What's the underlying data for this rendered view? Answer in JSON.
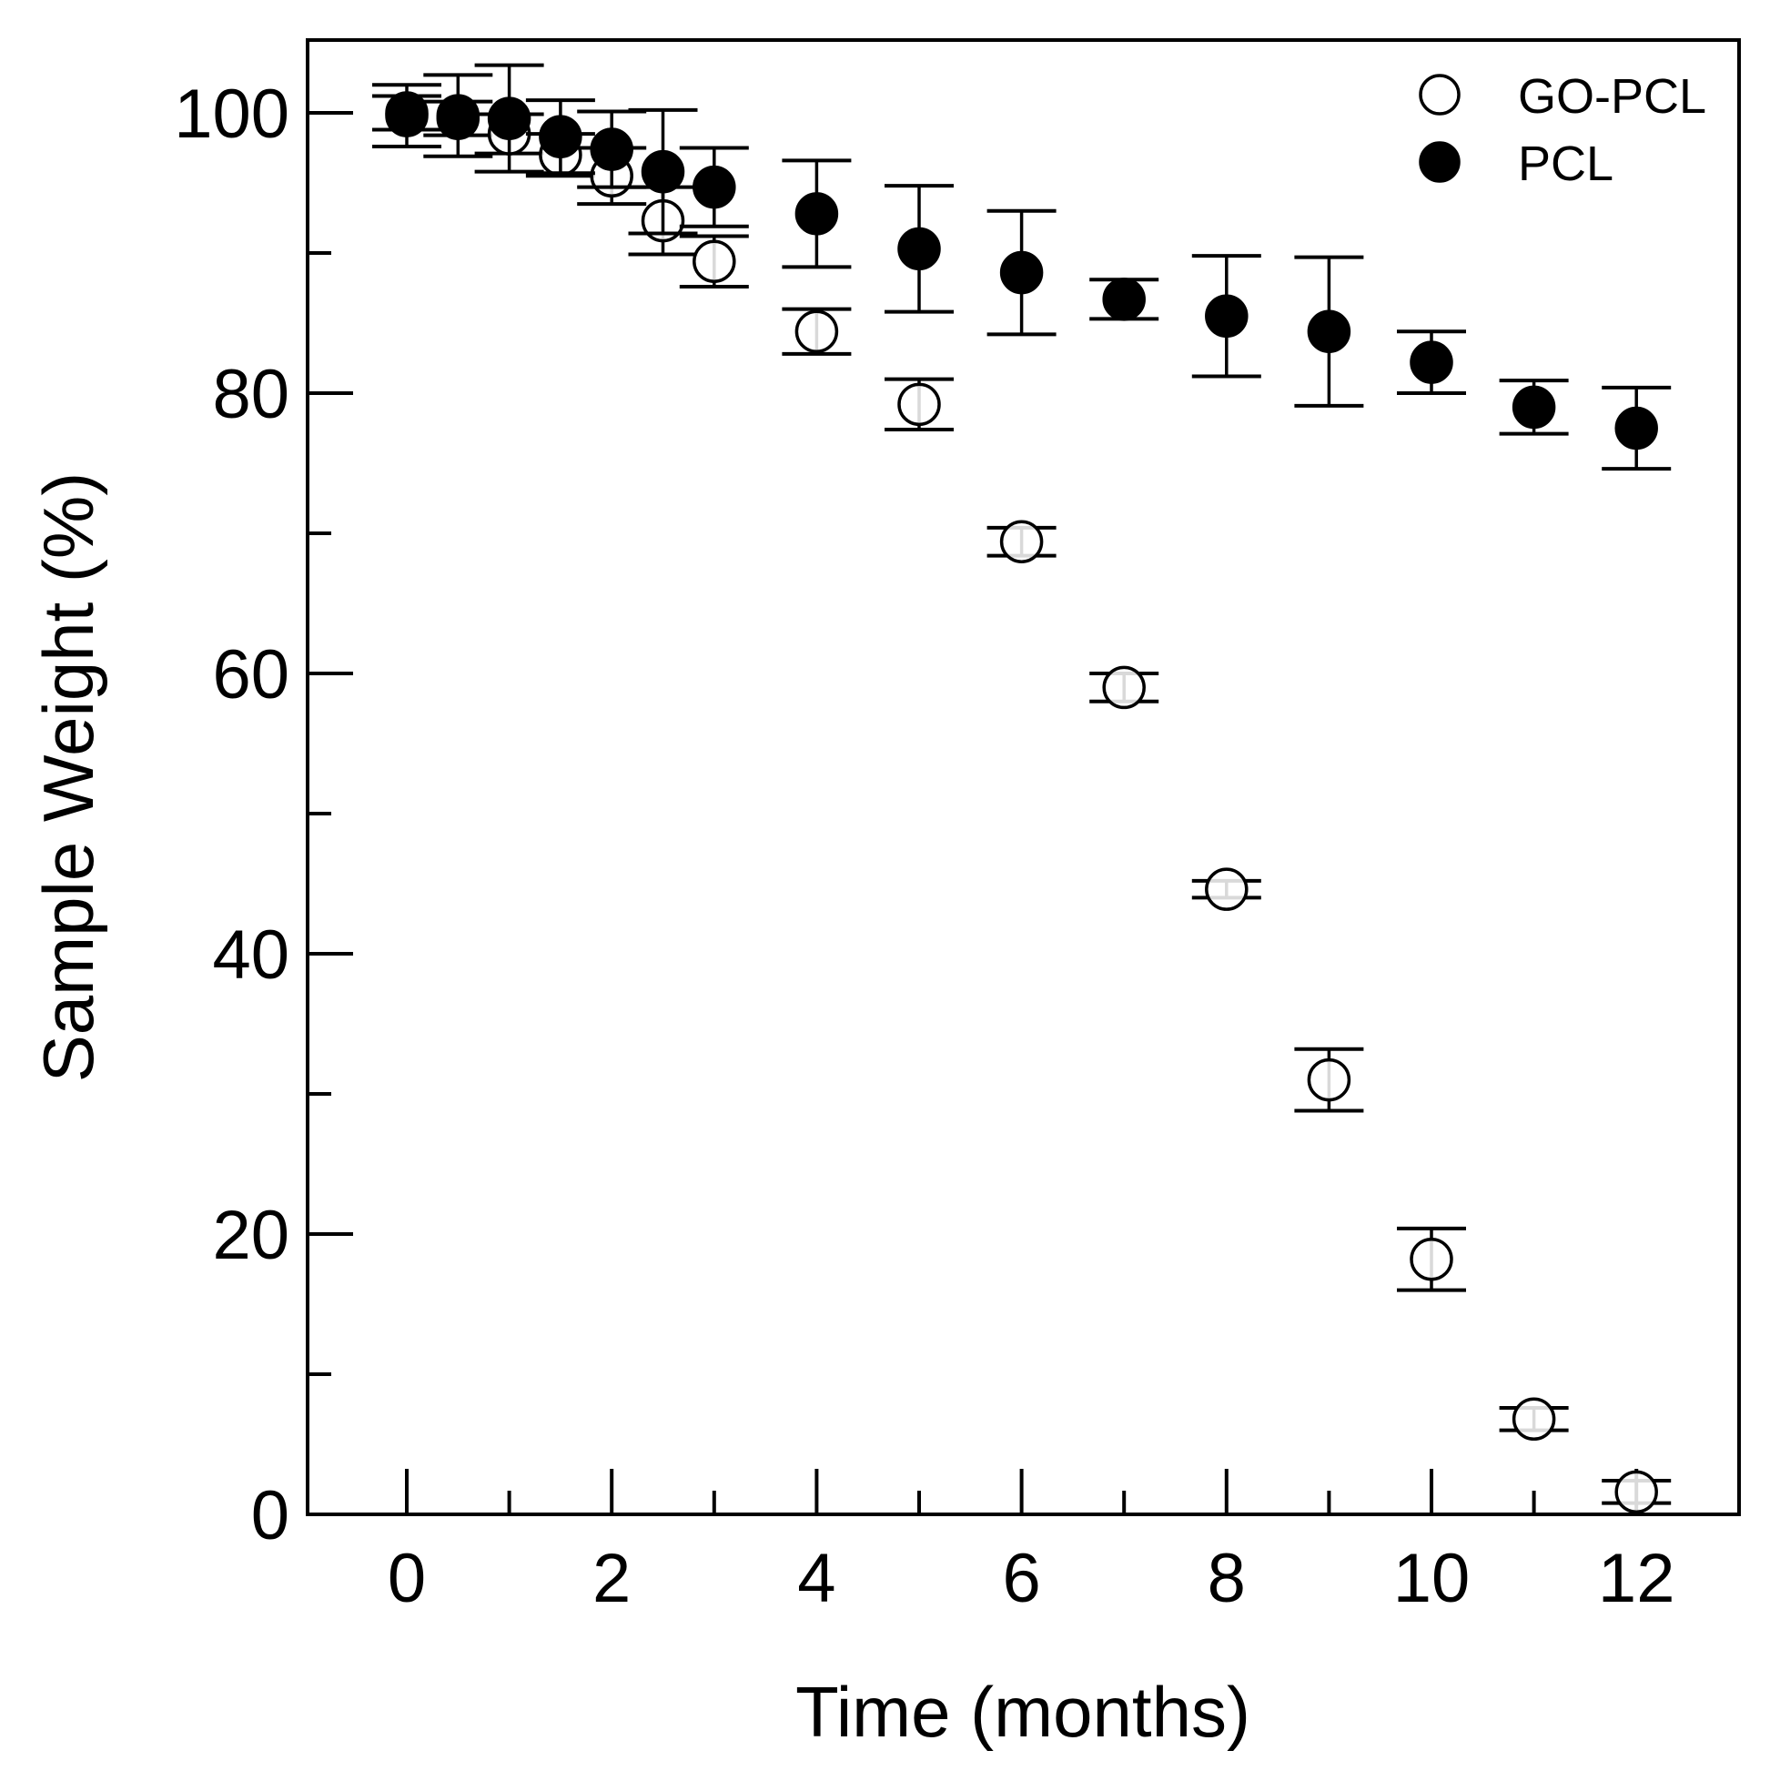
{
  "chart_data": {
    "type": "scatter",
    "title": "",
    "xlabel": "Time (months)",
    "ylabel": "Sample Weight (%)",
    "xlim": [
      -1,
      13
    ],
    "ylim": [
      0,
      105
    ],
    "x_major_ticks": [
      0,
      2,
      4,
      6,
      8,
      10,
      12
    ],
    "x_tick_labels": [
      "0",
      "2",
      "4",
      "6",
      "8",
      "10",
      "12"
    ],
    "x_minor_ticks": [
      1,
      3,
      5,
      7,
      9,
      11
    ],
    "y_major_ticks": [
      0,
      20,
      40,
      60,
      80,
      100
    ],
    "y_tick_labels": [
      "0",
      "20",
      "40",
      "60",
      "80",
      "100"
    ],
    "y_minor_ticks": [
      10,
      30,
      50,
      70,
      90
    ],
    "grid": false,
    "legend_position": "top-right",
    "series": [
      {
        "name": "GO-PCL",
        "marker": "open-circle",
        "color": "#000000",
        "x": [
          0,
          0.5,
          1,
          1.5,
          2,
          2.5,
          3,
          4,
          5,
          6,
          7,
          8,
          9,
          10,
          11,
          12
        ],
        "y": [
          100,
          99.6,
          98.5,
          97,
          95.5,
          92.3,
          89.4,
          84.4,
          79.2,
          69.4,
          59,
          44.6,
          31,
          18.2,
          6.8,
          1.6
        ],
        "err": [
          1.2,
          1.2,
          1.4,
          1.5,
          2,
          2.4,
          1.8,
          1.6,
          1.8,
          1,
          1,
          0.6,
          2.2,
          2.2,
          0.8,
          0.8
        ]
      },
      {
        "name": "PCL",
        "marker": "filled-circle",
        "color": "#000000",
        "x": [
          0,
          0.5,
          1,
          1.5,
          2,
          2.5,
          3,
          4,
          5,
          6,
          7,
          8,
          9,
          10,
          11,
          12
        ],
        "y": [
          99.8,
          99.8,
          99.6,
          98.3,
          97.4,
          95.8,
          94.7,
          92.8,
          90.3,
          88.6,
          86.7,
          85.5,
          84.4,
          82.2,
          79,
          77.5
        ],
        "err": [
          2.2,
          2.9,
          3.8,
          2.6,
          2.7,
          4.4,
          2.8,
          3.8,
          4.5,
          4.4,
          1.4,
          4.3,
          5.3,
          2.2,
          1.9,
          2.9
        ]
      }
    ]
  }
}
